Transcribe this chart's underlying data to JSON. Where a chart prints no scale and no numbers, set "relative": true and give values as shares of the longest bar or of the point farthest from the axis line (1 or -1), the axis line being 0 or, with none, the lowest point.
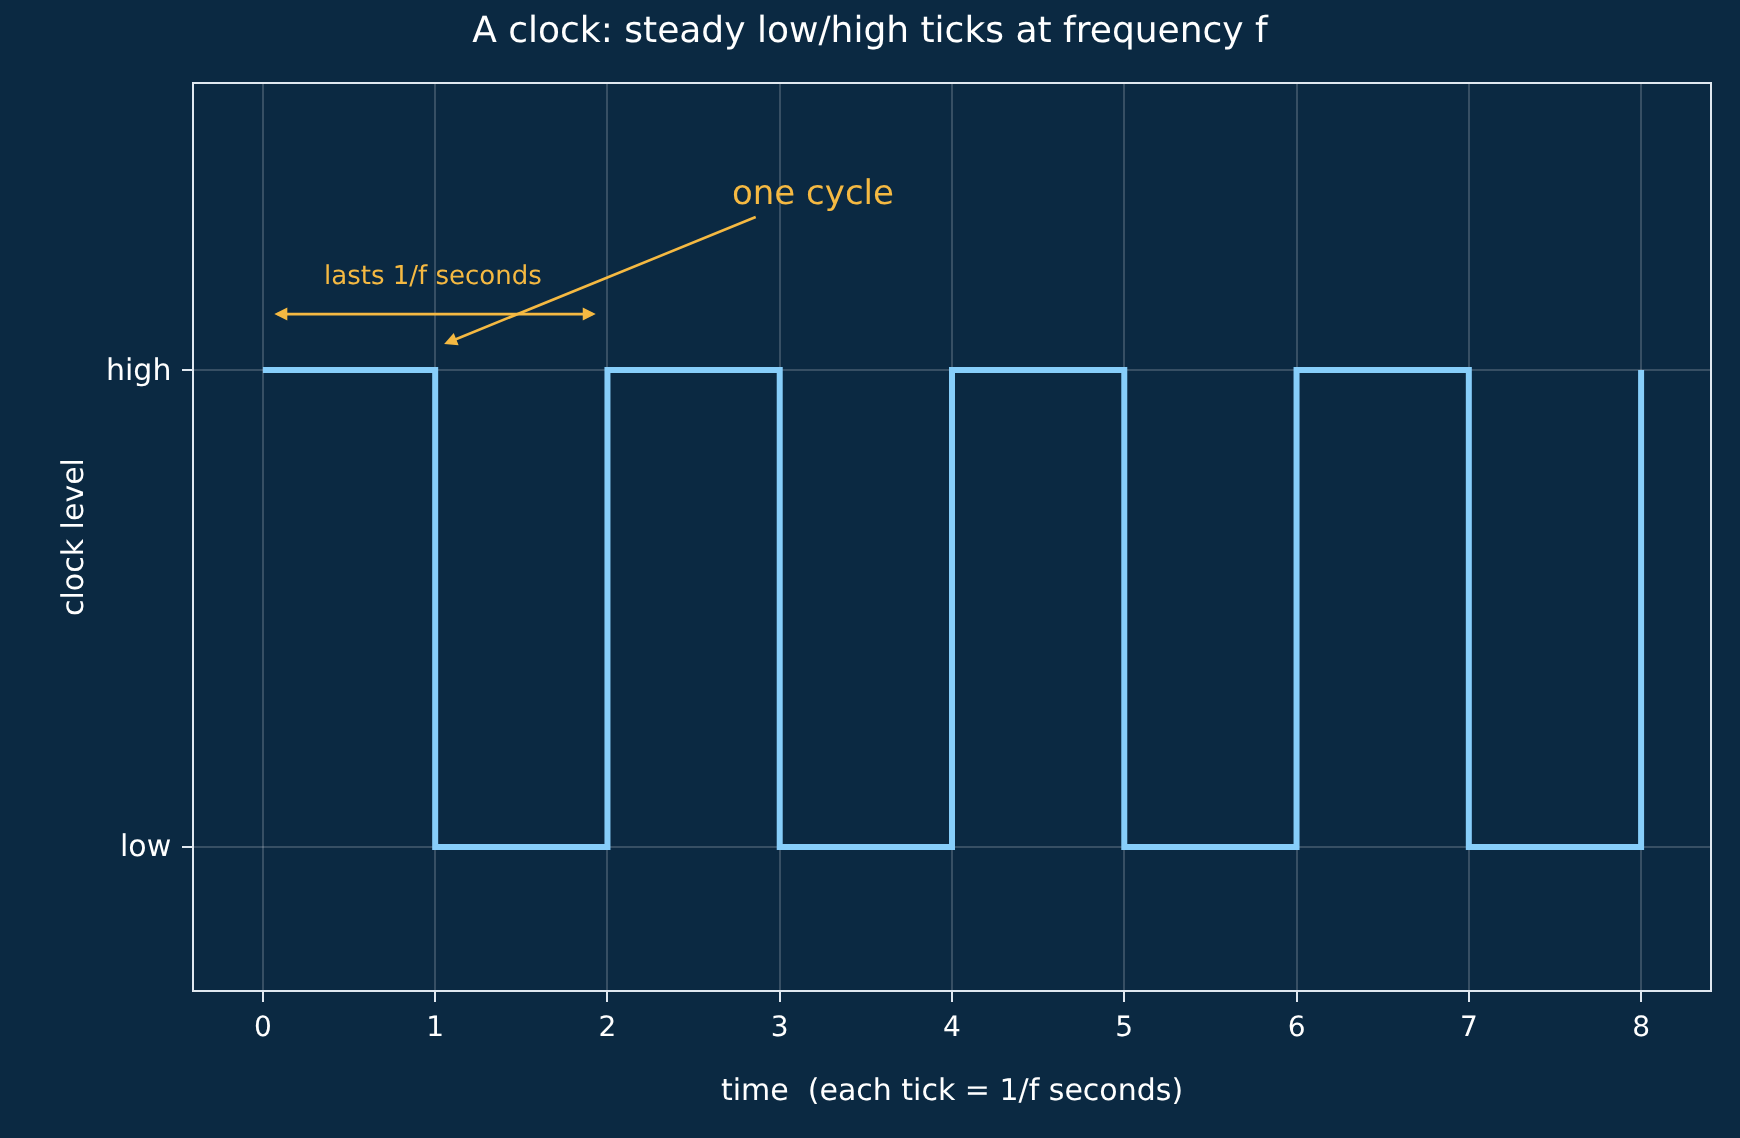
{
  "chart_data": {
    "type": "step",
    "title": "A clock: steady low/high ticks at frequency f",
    "xlabel": "time  (each tick = 1/f seconds)",
    "ylabel": "clock level",
    "x": [
      0,
      1,
      2,
      3,
      4,
      5,
      6,
      7,
      8
    ],
    "series": [
      {
        "color": "#87cefa",
        "values": [
          1,
          0,
          1,
          0,
          1,
          0,
          1,
          0,
          1
        ]
      }
    ],
    "relative": true,
    "xlim": [
      -0.4,
      8.4
    ],
    "xticks": [
      0,
      1,
      2,
      3,
      4,
      5,
      6,
      7,
      8
    ],
    "grid": true,
    "marker": "none",
    "line_style": "solid",
    "annotations": [
      "lasts 1/f seconds",
      "one cycle",
      "high",
      "low"
    ]
  }
}
